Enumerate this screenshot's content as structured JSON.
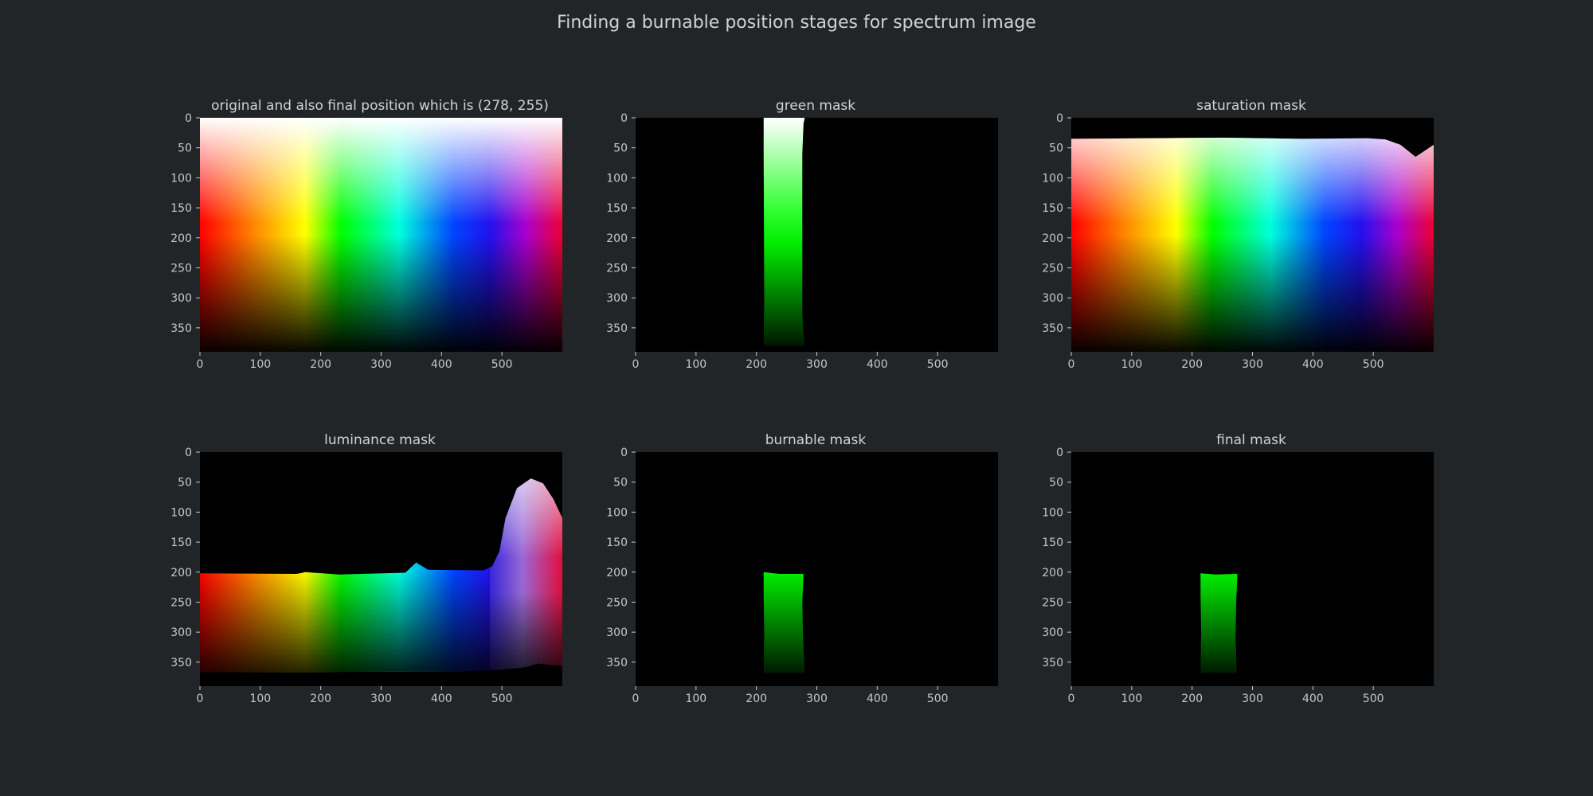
{
  "figure": {
    "title": "Finding a burnable position stages for spectrum image",
    "background": "#212528",
    "text_color": "#cfd3d6"
  },
  "chart_data": [
    {
      "type": "heatmap",
      "name": "panel-original",
      "title": "original and also final position which is (278, 255)",
      "image": "full hue spectrum gradient (hue left-to-right, white at top to black at bottom)",
      "xlim": [
        0,
        600
      ],
      "ylim": [
        390,
        0
      ],
      "xticks": [
        0,
        100,
        200,
        300,
        400,
        500
      ],
      "yticks": [
        0,
        50,
        100,
        150,
        200,
        250,
        300,
        350
      ],
      "final_position": [
        278,
        255
      ]
    },
    {
      "type": "heatmap",
      "name": "panel-green-mask",
      "title": "green mask",
      "image": "green hue band kept, rest black",
      "xlim": [
        0,
        600
      ],
      "ylim": [
        390,
        0
      ],
      "xticks": [
        0,
        100,
        200,
        300,
        400,
        500
      ],
      "yticks": [
        0,
        50,
        100,
        150,
        200,
        250,
        300,
        350
      ],
      "kept_x_range": [
        212,
        276
      ],
      "kept_y_range": [
        0,
        380
      ]
    },
    {
      "type": "heatmap",
      "name": "panel-saturation-mask",
      "title": "saturation mask",
      "image": "spectrum with low-saturation top strip removed",
      "xlim": [
        0,
        600
      ],
      "ylim": [
        390,
        0
      ],
      "xticks": [
        0,
        100,
        200,
        300,
        400,
        500
      ],
      "yticks": [
        0,
        50,
        100,
        150,
        200,
        250,
        300,
        350
      ],
      "kept_from_y": 22
    },
    {
      "type": "heatmap",
      "name": "panel-luminance-mask",
      "title": "luminance mask",
      "image": "spectrum bottom band kept plus bright violet/magenta lobe",
      "xlim": [
        0,
        600
      ],
      "ylim": [
        390,
        0
      ],
      "xticks": [
        0,
        100,
        200,
        300,
        400,
        500
      ],
      "yticks": [
        0,
        50,
        100,
        150,
        200,
        250,
        300,
        350
      ],
      "kept_y_range": [
        202,
        367
      ]
    },
    {
      "type": "heatmap",
      "name": "panel-burnable-mask",
      "title": "burnable mask",
      "image": "green band between luminance limits",
      "xlim": [
        0,
        600
      ],
      "ylim": [
        390,
        0
      ],
      "xticks": [
        0,
        100,
        200,
        300,
        400,
        500
      ],
      "yticks": [
        0,
        50,
        100,
        150,
        200,
        250,
        300,
        350
      ],
      "kept_x_range": [
        212,
        276
      ],
      "kept_y_range": [
        200,
        368
      ]
    },
    {
      "type": "heatmap",
      "name": "panel-final-mask",
      "title": "final mask",
      "image": "final burnable region",
      "xlim": [
        0,
        600
      ],
      "ylim": [
        390,
        0
      ],
      "xticks": [
        0,
        100,
        200,
        300,
        400,
        500
      ],
      "yticks": [
        0,
        50,
        100,
        150,
        200,
        250,
        300,
        350
      ],
      "kept_x_range": [
        214,
        274
      ],
      "kept_y_range": [
        202,
        368
      ]
    }
  ]
}
